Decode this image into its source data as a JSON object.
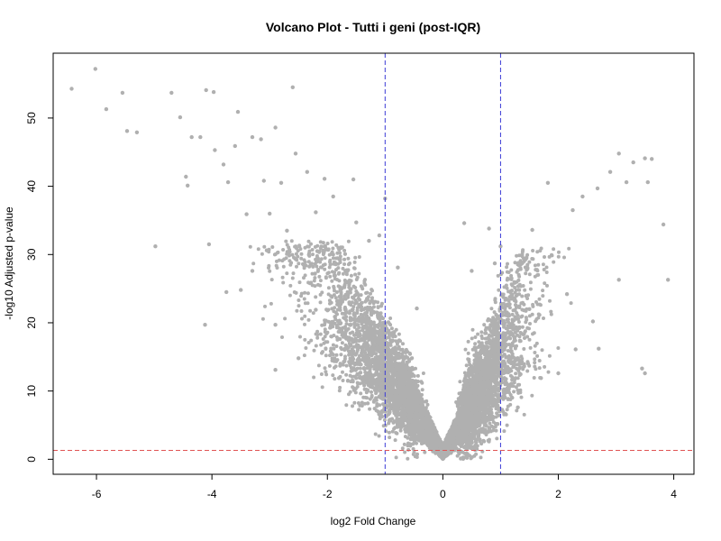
{
  "chart_data": {
    "type": "scatter",
    "title": "Volcano Plot - Tutti i geni (post-IQR)",
    "xlabel": "log2 Fold Change",
    "ylabel": "-log10 Adjusted p-value",
    "xlim": [
      -6.75,
      4.35
    ],
    "ylim": [
      -2.2,
      59.5
    ],
    "x_ticks": [
      -6,
      -4,
      -2,
      0,
      2,
      4
    ],
    "y_ticks": [
      0,
      10,
      20,
      30,
      40,
      50
    ],
    "grid": false,
    "legend": "none",
    "point_color": "#b0b0b0",
    "threshold_lines": {
      "log2fc": [
        -1,
        1
      ],
      "neg_log10_padj": 1.3,
      "log2fc_color": "#3b3bd6",
      "padj_color": "#e05555",
      "style": "dashed"
    },
    "series": [
      {
        "points": [
          [
            -6.43,
            54.3
          ],
          [
            -6.02,
            57.2
          ],
          [
            -5.83,
            51.3
          ],
          [
            -5.55,
            53.7
          ],
          [
            -5.47,
            48.1
          ],
          [
            -5.3,
            47.9
          ],
          [
            -4.98,
            31.2
          ],
          [
            -4.7,
            53.7
          ],
          [
            -4.55,
            50.1
          ],
          [
            -4.35,
            47.2
          ],
          [
            -4.2,
            47.2
          ],
          [
            -4.1,
            54.1
          ],
          [
            -3.97,
            53.8
          ],
          [
            -4.45,
            41.4
          ],
          [
            -4.42,
            40.1
          ],
          [
            -3.95,
            45.3
          ],
          [
            -3.8,
            43.2
          ],
          [
            -3.6,
            45.9
          ],
          [
            -3.55,
            50.9
          ],
          [
            -3.3,
            47.2
          ],
          [
            -3.15,
            46.9
          ],
          [
            -2.9,
            48.6
          ],
          [
            -2.6,
            54.5
          ],
          [
            -2.55,
            44.8
          ],
          [
            -4.12,
            19.7
          ],
          [
            -4.05,
            31.5
          ],
          [
            -3.72,
            40.6
          ],
          [
            -3.4,
            35.9
          ],
          [
            -3.1,
            40.8
          ],
          [
            -2.8,
            40.5
          ],
          [
            -2.35,
            42.1
          ],
          [
            -2.05,
            41.1
          ],
          [
            -1.55,
            41.0
          ],
          [
            -1.0,
            38.2
          ],
          [
            -3.0,
            36.0
          ],
          [
            -2.7,
            33.5
          ],
          [
            -2.2,
            36.2
          ],
          [
            -1.9,
            38.5
          ],
          [
            -1.5,
            34.7
          ],
          [
            -3.3,
            27.6
          ],
          [
            -2.9,
            13.1
          ],
          [
            -2.5,
            14.8
          ],
          [
            -1.1,
            32.8
          ],
          [
            -1.28,
            32.0
          ],
          [
            0.37,
            34.6
          ],
          [
            0.8,
            33.8
          ],
          [
            0.5,
            27.6
          ],
          [
            1.0,
            31.2
          ],
          [
            1.55,
            33.6
          ],
          [
            1.82,
            40.5
          ],
          [
            2.25,
            36.5
          ],
          [
            2.42,
            38.5
          ],
          [
            2.68,
            39.7
          ],
          [
            2.9,
            42.1
          ],
          [
            3.05,
            44.8
          ],
          [
            3.18,
            40.6
          ],
          [
            3.3,
            43.5
          ],
          [
            3.5,
            44.1
          ],
          [
            3.62,
            44.0
          ],
          [
            3.55,
            40.6
          ],
          [
            3.82,
            34.4
          ],
          [
            3.9,
            26.3
          ],
          [
            3.45,
            13.3
          ],
          [
            3.5,
            12.6
          ],
          [
            3.05,
            26.3
          ],
          [
            2.6,
            20.2
          ],
          [
            2.3,
            16.1
          ],
          [
            2.0,
            12.6
          ],
          [
            1.7,
            11.9
          ],
          [
            1.3,
            7.6
          ],
          [
            0.9,
            28.7
          ],
          [
            -0.45,
            22.1
          ],
          [
            -0.78,
            28.1
          ],
          [
            -1.62,
            23.0
          ],
          [
            -2.2,
            21.9
          ],
          [
            -2.9,
            19.7
          ],
          [
            -3.05,
            30.6
          ],
          [
            -3.5,
            24.8
          ],
          [
            -3.75,
            24.5
          ],
          [
            -0.3,
            4.7
          ],
          [
            0.3,
            4.8
          ],
          [
            0.55,
            11.8
          ],
          [
            -0.6,
            11.0
          ],
          [
            0.85,
            20.2
          ],
          [
            -1.3,
            8.2
          ],
          [
            -1.8,
            11.9
          ],
          [
            1.5,
            22.0
          ],
          [
            2.15,
            24.2
          ],
          [
            2.7,
            16.2
          ]
        ],
        "dense_clusters": [
          {
            "x_range": [
              -2.8,
              -0.2
            ],
            "y_range": [
              5,
              28
            ],
            "count": 2600
          },
          {
            "x_range": [
              0.2,
              2.3
            ],
            "y_range": [
              4,
              27
            ],
            "count": 2400
          },
          {
            "x_range": [
              -0.9,
              0.9
            ],
            "y_range": [
              0,
              6
            ],
            "count": 3000
          }
        ]
      }
    ]
  }
}
